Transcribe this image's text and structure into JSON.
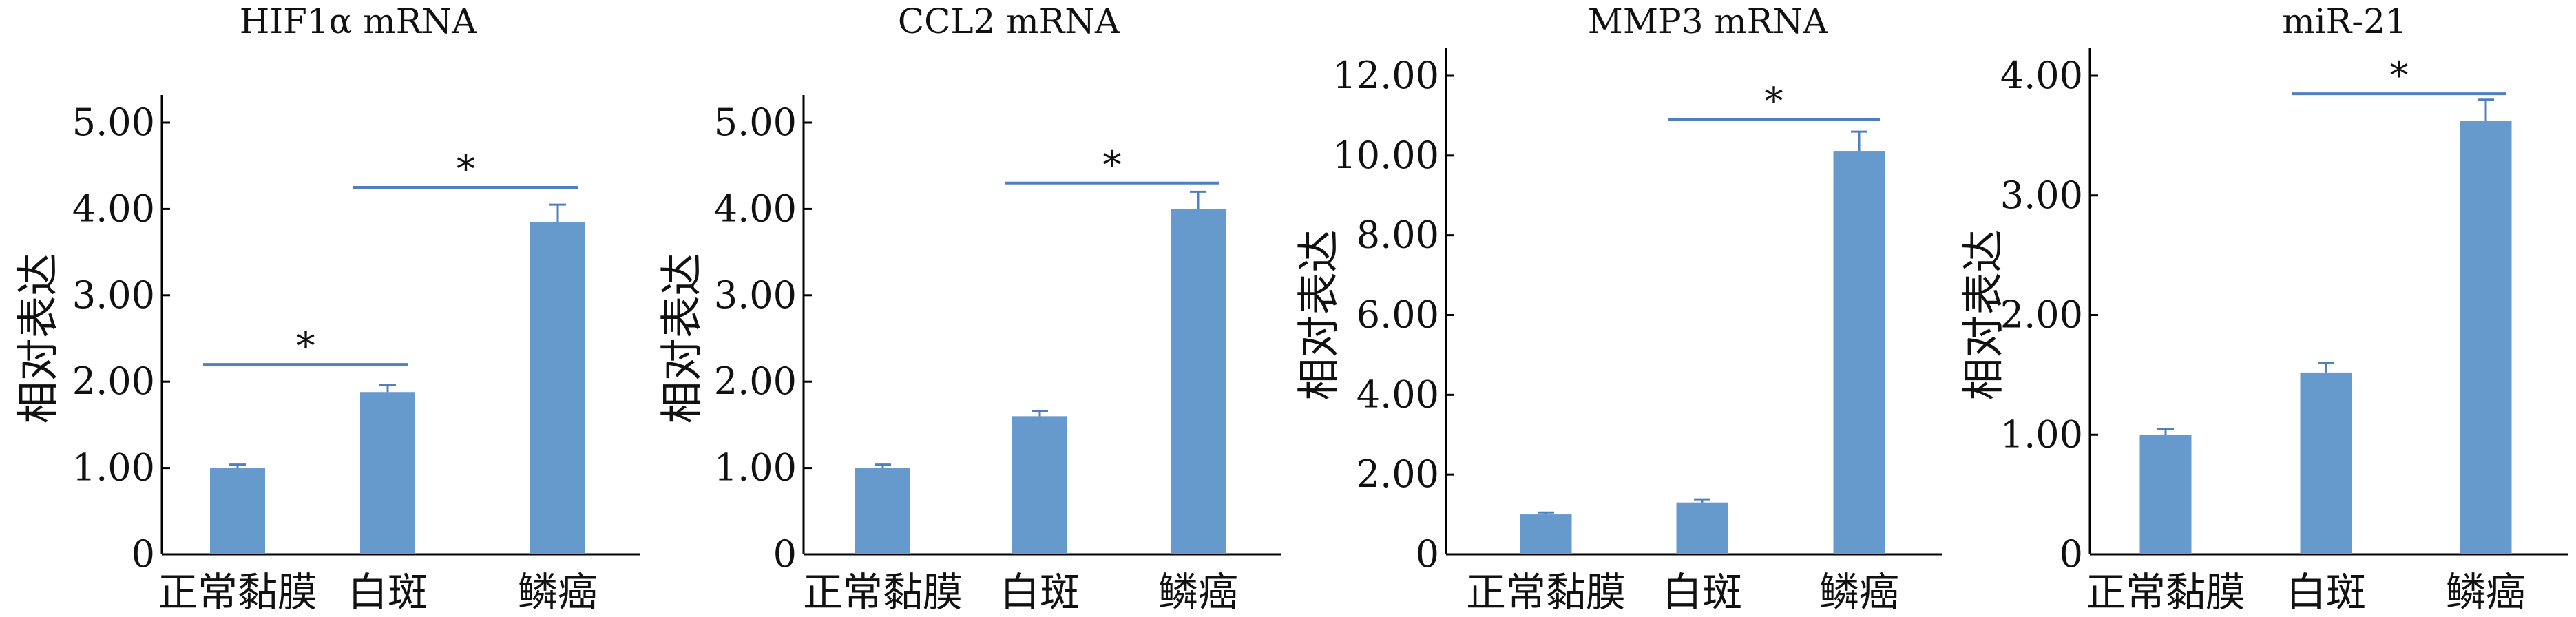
{
  "colors": {
    "bar": "#6699CC",
    "bracket": "#4F7FC0",
    "axis": "#000000",
    "text": "#111111"
  },
  "chart_data": [
    {
      "type": "bar",
      "title": "HIF1α  mRNA",
      "ylabel": "相对表达",
      "categories": [
        "正常黏膜",
        "白斑",
        "鳞癌"
      ],
      "values": [
        1.0,
        1.88,
        3.85
      ],
      "errors": [
        0.04,
        0.08,
        0.2
      ],
      "ylim": [
        0,
        5
      ],
      "yticks": [
        0,
        1,
        2,
        3,
        4,
        5
      ],
      "yticklabels": [
        "0",
        "1.00",
        "2.00",
        "3.00",
        "4.00",
        "5.00"
      ],
      "significance": [
        {
          "from": 0,
          "to": 1,
          "y": 2.2,
          "label": "*"
        },
        {
          "from": 1,
          "to": 2,
          "y": 4.25,
          "label": "*"
        }
      ]
    },
    {
      "type": "bar",
      "title": "CCL2 mRNA",
      "ylabel": "相对表达",
      "categories": [
        "正常黏膜",
        "白斑",
        "鳞癌"
      ],
      "values": [
        1.0,
        1.6,
        4.0
      ],
      "errors": [
        0.04,
        0.06,
        0.2
      ],
      "ylim": [
        0,
        5
      ],
      "yticks": [
        0,
        1,
        2,
        3,
        4,
        5
      ],
      "yticklabels": [
        "0",
        "1.00",
        "2.00",
        "3.00",
        "4.00",
        "5.00"
      ],
      "significance": [
        {
          "from": 1,
          "to": 2,
          "y": 4.3,
          "label": "*"
        }
      ]
    },
    {
      "type": "bar",
      "title": "MMP3 mRNA",
      "ylabel": "相对表达",
      "categories": [
        "正常黏膜",
        "白斑",
        "鳞癌"
      ],
      "values": [
        1.0,
        1.3,
        10.1
      ],
      "errors": [
        0.05,
        0.08,
        0.5
      ],
      "ylim": [
        0,
        12
      ],
      "yticks": [
        0,
        2,
        4,
        6,
        8,
        10,
        12
      ],
      "yticklabels": [
        "0",
        "2.00",
        "4.00",
        "6.00",
        "8.00",
        "10.00",
        "12.00"
      ],
      "significance": [
        {
          "from": 1,
          "to": 2,
          "y": 10.9,
          "label": "*"
        }
      ]
    },
    {
      "type": "bar",
      "title": "miR-21",
      "ylabel": "相对表达",
      "categories": [
        "正常黏膜",
        "白斑",
        "鳞癌"
      ],
      "values": [
        1.0,
        1.52,
        3.62
      ],
      "errors": [
        0.05,
        0.08,
        0.18
      ],
      "ylim": [
        0,
        4
      ],
      "yticks": [
        0,
        1,
        2,
        3,
        4
      ],
      "yticklabels": [
        "0",
        "1.00",
        "2.00",
        "3.00",
        "4.00"
      ],
      "significance": [
        {
          "from": 1,
          "to": 2,
          "y": 3.85,
          "label": "*"
        }
      ]
    }
  ]
}
